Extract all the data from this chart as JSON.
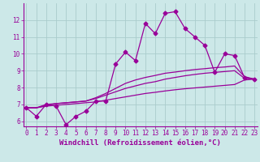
{
  "xlabel": "Windchill (Refroidissement éolien,°C)",
  "x": [
    0,
    1,
    2,
    3,
    4,
    5,
    6,
    7,
    8,
    9,
    10,
    11,
    12,
    13,
    14,
    15,
    16,
    17,
    18,
    19,
    20,
    21,
    22,
    23
  ],
  "line1": [
    6.8,
    6.3,
    7.0,
    6.9,
    5.8,
    6.3,
    6.6,
    7.2,
    7.2,
    9.4,
    10.1,
    9.6,
    11.8,
    11.2,
    12.4,
    12.5,
    11.5,
    11.0,
    10.5,
    8.9,
    10.0,
    9.9,
    8.6,
    8.5
  ],
  "line2": [
    6.8,
    6.8,
    6.9,
    6.95,
    7.0,
    7.05,
    7.1,
    7.15,
    7.25,
    7.35,
    7.45,
    7.55,
    7.65,
    7.72,
    7.8,
    7.87,
    7.93,
    7.98,
    8.03,
    8.08,
    8.13,
    8.18,
    8.45,
    8.5
  ],
  "line3": [
    6.8,
    6.8,
    6.95,
    7.05,
    7.1,
    7.15,
    7.2,
    7.35,
    7.55,
    7.75,
    7.95,
    8.1,
    8.25,
    8.35,
    8.5,
    8.6,
    8.7,
    8.78,
    8.85,
    8.9,
    8.95,
    9.0,
    8.55,
    8.5
  ],
  "line4": [
    6.8,
    6.8,
    7.0,
    7.05,
    7.1,
    7.15,
    7.2,
    7.4,
    7.65,
    7.95,
    8.25,
    8.45,
    8.6,
    8.72,
    8.85,
    8.92,
    9.0,
    9.07,
    9.12,
    9.18,
    9.22,
    9.28,
    8.65,
    8.5
  ],
  "line_color": "#990099",
  "bg_color": "#cce8e8",
  "grid_color": "#aacccc",
  "ylim": [
    5.7,
    13.0
  ],
  "xlim": [
    -0.3,
    23.3
  ],
  "yticks": [
    6,
    7,
    8,
    9,
    10,
    11,
    12
  ],
  "xticks": [
    0,
    1,
    2,
    3,
    4,
    5,
    6,
    7,
    8,
    9,
    10,
    11,
    12,
    13,
    14,
    15,
    16,
    17,
    18,
    19,
    20,
    21,
    22,
    23
  ],
  "marker": "D",
  "markersize": 2.5,
  "linewidth": 0.9,
  "tick_fontsize": 5.5,
  "xlabel_fontsize": 6.5
}
